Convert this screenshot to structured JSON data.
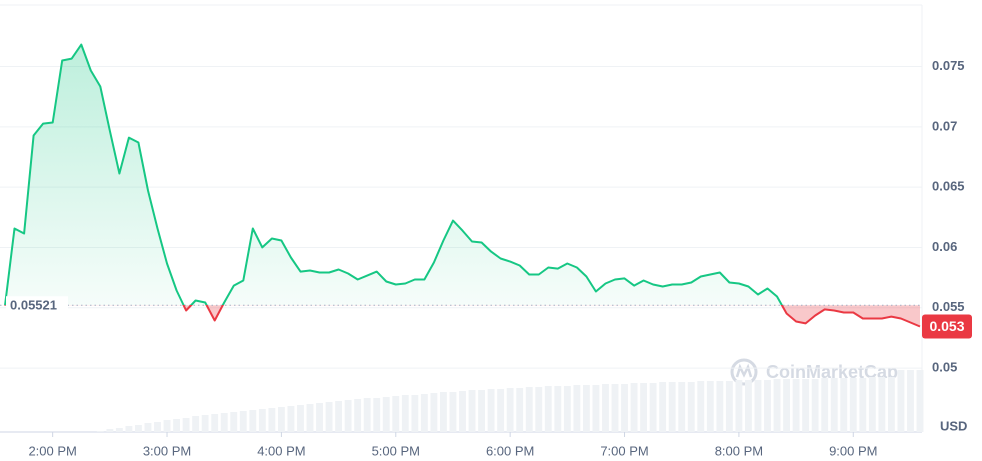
{
  "chart_data": {
    "type": "line",
    "categories": [
      null,
      null,
      null,
      null,
      null,
      "2:00 PM",
      null,
      null,
      null,
      null,
      null,
      null,
      null,
      null,
      null,
      null,
      null,
      "3:00 PM",
      null,
      null,
      null,
      null,
      null,
      null,
      null,
      null,
      null,
      null,
      null,
      "4:00 PM",
      null,
      null,
      null,
      null,
      null,
      null,
      null,
      null,
      null,
      null,
      null,
      "5:00 PM",
      null,
      null,
      null,
      null,
      null,
      null,
      null,
      null,
      null,
      null,
      null,
      "6:00 PM",
      null,
      null,
      null,
      null,
      null,
      null,
      null,
      null,
      null,
      null,
      null,
      "7:00 PM",
      null,
      null,
      null,
      null,
      null,
      null,
      null,
      null,
      null,
      null,
      null,
      "8:00 PM",
      null,
      null,
      null,
      null,
      null,
      null,
      null,
      null,
      null,
      null,
      null,
      "9:00 PM",
      null,
      null,
      null,
      null,
      null,
      null,
      null
    ],
    "values": [
      0.05519,
      0.06157,
      0.06116,
      0.06928,
      0.07027,
      0.07036,
      0.0755,
      0.07566,
      0.07682,
      0.07467,
      0.07334,
      0.06969,
      0.06613,
      0.06911,
      0.0687,
      0.06472,
      0.06157,
      0.05867,
      0.05643,
      0.05477,
      0.0556,
      0.05544,
      0.05394,
      0.05544,
      0.05684,
      0.05726,
      0.06157,
      0.06,
      0.06074,
      0.06058,
      0.05917,
      0.058,
      0.05809,
      0.05792,
      0.05792,
      0.05817,
      0.05784,
      0.05734,
      0.05767,
      0.058,
      0.05718,
      0.05693,
      0.05701,
      0.05734,
      0.05734,
      0.05875,
      0.06058,
      0.06223,
      0.0614,
      0.06049,
      0.06041,
      0.05966,
      0.05908,
      0.05883,
      0.0585,
      0.05776,
      0.05776,
      0.05834,
      0.05825,
      0.05867,
      0.05834,
      0.05759,
      0.05635,
      0.05701,
      0.05734,
      0.05743,
      0.05684,
      0.05726,
      0.05693,
      0.05676,
      0.05693,
      0.05693,
      0.05709,
      0.05759,
      0.05776,
      0.05792,
      0.05709,
      0.05701,
      0.05676,
      0.0561,
      0.0566,
      0.05593,
      0.05452,
      0.05386,
      0.0537,
      0.05436,
      0.05486,
      0.05477,
      0.05461,
      0.05461,
      0.05411,
      0.05411,
      0.05411,
      0.05427,
      0.05411,
      0.05378,
      0.05345
    ],
    "volume": [
      null,
      null,
      null,
      null,
      null,
      null,
      null,
      null,
      null,
      null,
      1,
      3,
      4,
      6,
      7,
      9,
      10,
      12,
      13,
      14,
      16,
      17,
      18,
      19,
      20,
      21,
      22,
      23,
      24,
      25,
      26,
      27,
      28,
      29,
      30,
      31,
      32,
      33,
      34,
      34,
      35,
      36,
      37,
      37,
      38,
      39,
      40,
      40,
      41,
      42,
      42,
      43,
      43,
      44,
      44,
      45,
      45,
      46,
      46,
      46,
      47,
      47,
      47,
      48,
      48,
      48,
      49,
      49,
      49,
      50,
      50,
      50,
      50,
      51,
      51,
      51,
      51,
      52,
      52,
      52,
      52,
      53,
      53,
      53,
      53,
      53,
      54,
      54,
      54,
      54,
      54,
      55,
      55,
      55,
      62,
      62,
      62
    ],
    "vlim": [
      0,
      100
    ],
    "ylim": [
      0.0447,
      0.0801
    ],
    "yticks": [
      0.05,
      0.055,
      0.06,
      0.065,
      0.07,
      0.075
    ],
    "reference": {
      "value": 0.05521,
      "label": "0.05521"
    },
    "last_price_label": "0.053",
    "currency": "USD",
    "watermark": "CoinMarketCap",
    "up_color": "#16c784",
    "down_color": "#ea3943",
    "volume_color": "#eff2f5",
    "grid": true
  }
}
